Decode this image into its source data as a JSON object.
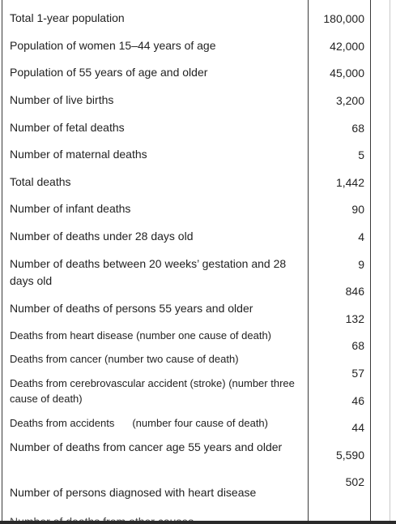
{
  "rows": [
    {
      "label": "Total 1-year population",
      "value": "180,000"
    },
    {
      "label": "Population of women 15–44 years of age",
      "value": "42,000"
    },
    {
      "label": "Population of 55 years of age and older",
      "value": "45,000"
    },
    {
      "label": "Number of live births",
      "value": "3,200"
    },
    {
      "label": "Number of fetal deaths",
      "value": "68"
    },
    {
      "label": "Number of maternal deaths",
      "value": "5"
    },
    {
      "label": "Total deaths",
      "value": "1,442"
    },
    {
      "label": "Number of infant deaths",
      "value": "90"
    },
    {
      "label": "Number of deaths under 28 days old",
      "value": "4"
    },
    {
      "label": "Number of deaths between 20 weeks’ gestation and 28 days old",
      "value": "9"
    },
    {
      "label": "Number of deaths of persons 55 years and older",
      "value": "846"
    },
    {
      "label": "Deaths from heart disease (number one cause of death)",
      "value": "132"
    },
    {
      "label": "Deaths from cancer (number two cause of death)",
      "value": "68"
    },
    {
      "label": "Deaths from cerebrovascular accident (stroke) (number three cause of death)",
      "value": "57"
    },
    {
      "label_a": "Deaths from accidents",
      "label_b": "(number four cause of death)",
      "value": "46"
    },
    {
      "label": "Number of deaths from cancer age 55 years and older",
      "value": "44"
    },
    {
      "label": "Number of persons diagnosed with heart disease",
      "value": "5,590"
    },
    {
      "label": "Number of deaths from other causes",
      "value": "502"
    }
  ]
}
